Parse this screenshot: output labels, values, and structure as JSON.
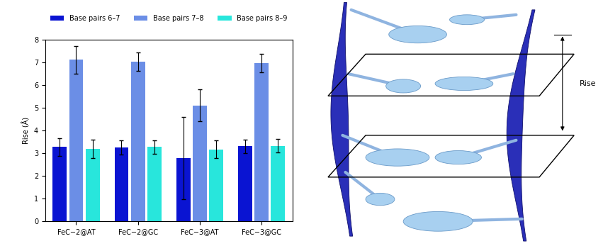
{
  "chart_data": {
    "type": "bar",
    "categories": [
      "FeC−2@AT",
      "FeC−2@GC",
      "FeC−3@AT",
      "FeC−3@GC"
    ],
    "y_label": "Rise (Å)",
    "series": [
      {
        "name": "Base pairs 6–7",
        "color": "#0a14d2",
        "values": [
          3.27,
          3.25,
          2.78,
          3.3
        ],
        "errors": [
          0.38,
          0.3,
          1.8,
          0.3
        ]
      },
      {
        "name": "Base pairs 7–8",
        "color": "#6b8ee6",
        "values": [
          7.1,
          7.02,
          5.1,
          6.95
        ],
        "errors": [
          0.6,
          0.4,
          0.7,
          0.4
        ]
      },
      {
        "name": "Base pairs 8–9",
        "color": "#28e6dc",
        "values": [
          3.18,
          3.27,
          3.17,
          3.32
        ],
        "errors": [
          0.4,
          0.3,
          0.4,
          0.3
        ]
      }
    ],
    "ylim": [
      0,
      8
    ],
    "yticks": [
      0,
      1,
      2,
      3,
      4,
      5,
      6,
      7,
      8
    ],
    "legend": "upper center"
  },
  "diagram": {
    "rise_label": "Rise"
  }
}
